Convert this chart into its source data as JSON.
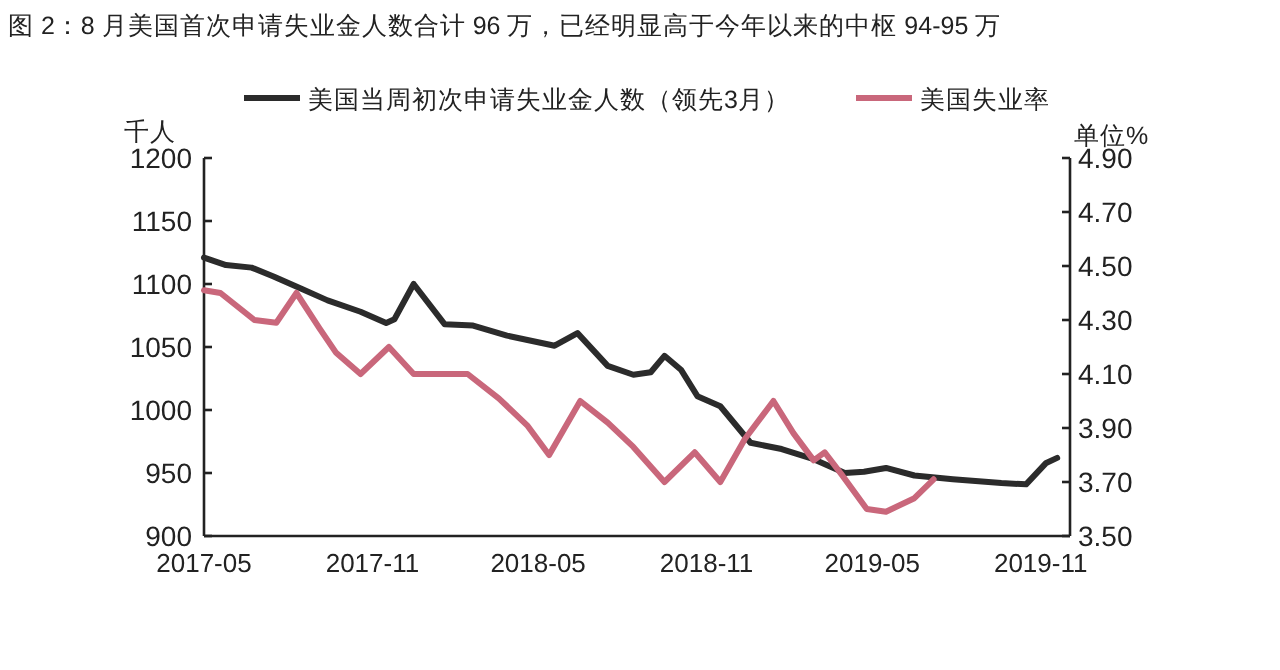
{
  "chart_data": {
    "type": "line",
    "title": "图 2：8 月美国首次申请失业金人数合计 96 万，已经明显高于今年以来的中枢 94-95 万",
    "ylabel": "千人",
    "y2label": "单位%",
    "xlim": [
      "2017-05-01",
      "2019-12-03"
    ],
    "xticks": [
      "2017-05",
      "2017-11",
      "2018-05",
      "2018-11",
      "2019-05",
      "2019-11"
    ],
    "ylim": [
      900,
      1200
    ],
    "yticks": [
      900,
      950,
      1000,
      1050,
      1100,
      1150,
      1200
    ],
    "y2lim": [
      3.5,
      4.9
    ],
    "y2ticks": [
      {
        "value": 3.5,
        "label": "3.50"
      },
      {
        "value": 3.7,
        "label": "3.70"
      },
      {
        "value": 3.9,
        "label": "3.90"
      },
      {
        "value": 4.1,
        "label": "4.10"
      },
      {
        "value": 4.3,
        "label": "4.30"
      },
      {
        "value": 4.5,
        "label": "4.50"
      },
      {
        "value": 4.7,
        "label": "4.70"
      },
      {
        "value": 4.9,
        "label": "4.90"
      }
    ],
    "grid": false,
    "legend": "top",
    "marker": "none",
    "line_style": "solid",
    "series": [
      {
        "name": "美国当周初次申请失业金人数（领先3月）",
        "color": "#2b2b2b",
        "x": [
          "2017-05-01",
          "2017-05-25",
          "2017-06-22",
          "2017-07-16",
          "2017-08-16",
          "2017-09-13",
          "2017-10-19",
          "2017-11-16",
          "2017-11-25",
          "2017-12-16",
          "2018-01-19",
          "2018-02-19",
          "2018-03-28",
          "2018-05-19",
          "2018-06-13",
          "2018-07-16",
          "2018-08-13",
          "2018-09-01",
          "2018-09-16",
          "2018-10-04",
          "2018-10-22",
          "2018-11-16",
          "2018-12-19",
          "2019-01-22",
          "2019-02-26",
          "2019-04-01",
          "2019-04-22",
          "2019-05-16",
          "2019-06-16",
          "2019-07-28",
          "2019-09-19",
          "2019-10-16",
          "2019-11-07",
          "2019-11-19"
        ],
        "values": [
          1121,
          1115,
          1113,
          1106,
          1096,
          1087,
          1078,
          1069,
          1072,
          1100,
          1068,
          1067,
          1059,
          1051,
          1061,
          1035,
          1028,
          1030,
          1043,
          1032,
          1011,
          1003,
          974,
          969,
          961,
          950,
          951,
          954,
          948,
          945,
          942,
          941,
          958,
          962
        ]
      },
      {
        "name": "美国失业率",
        "color": "#c9677b",
        "axis": "y2",
        "x": [
          "2017-05-01",
          "2017-05-19",
          "2017-06-25",
          "2017-07-19",
          "2017-08-10",
          "2017-09-04",
          "2017-09-22",
          "2017-10-19",
          "2017-11-19",
          "2017-12-16",
          "2018-02-13",
          "2018-03-19",
          "2018-04-19",
          "2018-05-13",
          "2018-06-16",
          "2018-07-16",
          "2018-08-13",
          "2018-09-16",
          "2018-10-19",
          "2018-11-16",
          "2018-12-13",
          "2019-01-13",
          "2019-02-04",
          "2019-02-26",
          "2019-03-10",
          "2019-03-28",
          "2019-04-25",
          "2019-05-16",
          "2019-06-16",
          "2019-07-07"
        ],
        "values": [
          4.41,
          4.4,
          4.3,
          4.29,
          4.4,
          4.27,
          4.18,
          4.1,
          4.2,
          4.1,
          4.1,
          4.01,
          3.91,
          3.8,
          4.0,
          3.92,
          3.83,
          3.7,
          3.81,
          3.7,
          3.86,
          4.0,
          3.88,
          3.78,
          3.81,
          3.73,
          3.6,
          3.59,
          3.64,
          3.71
        ]
      }
    ]
  }
}
